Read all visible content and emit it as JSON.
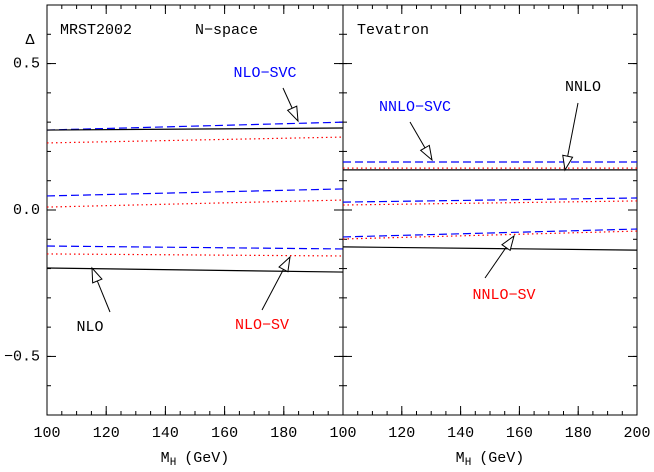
{
  "chart_data": [
    {
      "type": "line",
      "ylabel": "Δ",
      "xlabel": [
        "M",
        "H",
        "(GeV)"
      ],
      "annotations": [
        {
          "text": "MRST2002",
          "color": "#000000"
        },
        {
          "text": "N−space",
          "color": "#000000"
        },
        {
          "text": "NLO−SVC",
          "color": "#0000ff"
        },
        {
          "text": "NLO",
          "color": "#000000"
        },
        {
          "text": "NLO−SV",
          "color": "#ff0000"
        }
      ],
      "xlim": [
        100,
        200
      ],
      "ylim": [
        -0.7,
        0.7
      ],
      "xticks": [
        100,
        120,
        140,
        160,
        180
      ],
      "yticks": [
        {
          "value": -0.5,
          "label": "−0.5"
        },
        {
          "value": 0,
          "label": "0.0"
        },
        0.5
      ],
      "series": [
        {
          "color": "#0000ff",
          "dash": "dashed",
          "x": [
            100,
            200
          ],
          "values": [
            0.273,
            0.3
          ]
        },
        {
          "color": "#000000",
          "dash": "solid",
          "x": [
            100,
            200
          ],
          "values": [
            0.273,
            0.28
          ]
        },
        {
          "color": "#ff0000",
          "dash": "dotted",
          "x": [
            100,
            200
          ],
          "values": [
            0.229,
            0.249
          ]
        },
        {
          "color": "#0000ff",
          "dash": "dashed",
          "x": [
            100,
            200
          ],
          "values": [
            0.048,
            0.072
          ]
        },
        {
          "color": "#ff0000",
          "dash": "dotted",
          "x": [
            100,
            200
          ],
          "values": [
            0.01,
            0.034
          ]
        },
        {
          "color": "#0000ff",
          "dash": "dashed",
          "x": [
            100,
            200
          ],
          "values": [
            -0.123,
            -0.133
          ]
        },
        {
          "color": "#ff0000",
          "dash": "dotted",
          "x": [
            100,
            200
          ],
          "values": [
            -0.15,
            -0.157
          ]
        },
        {
          "color": "#000000",
          "dash": "solid",
          "x": [
            100,
            200
          ],
          "values": [
            -0.198,
            -0.212
          ]
        }
      ]
    },
    {
      "type": "line",
      "xlabel": [
        "M",
        "H",
        "(GeV)"
      ],
      "annotations": [
        {
          "text": "Tevatron",
          "color": "#000000"
        },
        {
          "text": "NNLO",
          "color": "#000000"
        },
        {
          "text": "NNLO−SVC",
          "color": "#0000ff"
        },
        {
          "text": "NNLO−SV",
          "color": "#ff0000"
        }
      ],
      "xlim": [
        100,
        200
      ],
      "ylim": [
        -0.7,
        0.7
      ],
      "xticks": [
        100,
        120,
        140,
        160,
        180,
        200
      ],
      "series": [
        {
          "color": "#0000ff",
          "dash": "dashed",
          "x": [
            100,
            200
          ],
          "values": [
            0.164,
            0.164
          ]
        },
        {
          "color": "#ff0000",
          "dash": "dotted",
          "x": [
            100,
            200
          ],
          "values": [
            0.143,
            0.143
          ]
        },
        {
          "color": "#000000",
          "dash": "solid",
          "x": [
            100,
            200
          ],
          "values": [
            0.137,
            0.137
          ]
        },
        {
          "color": "#0000ff",
          "dash": "dashed",
          "x": [
            100,
            200
          ],
          "values": [
            0.027,
            0.041
          ]
        },
        {
          "color": "#ff0000",
          "dash": "dotted",
          "x": [
            100,
            200
          ],
          "values": [
            0.017,
            0.031
          ]
        },
        {
          "color": "#0000ff",
          "dash": "dashed",
          "x": [
            100,
            200
          ],
          "values": [
            -0.092,
            -0.065
          ]
        },
        {
          "color": "#ff0000",
          "dash": "dotted",
          "x": [
            100,
            200
          ],
          "values": [
            -0.099,
            -0.072
          ]
        },
        {
          "color": "#000000",
          "dash": "solid",
          "x": [
            100,
            200
          ],
          "values": [
            -0.126,
            -0.137
          ]
        }
      ]
    }
  ]
}
